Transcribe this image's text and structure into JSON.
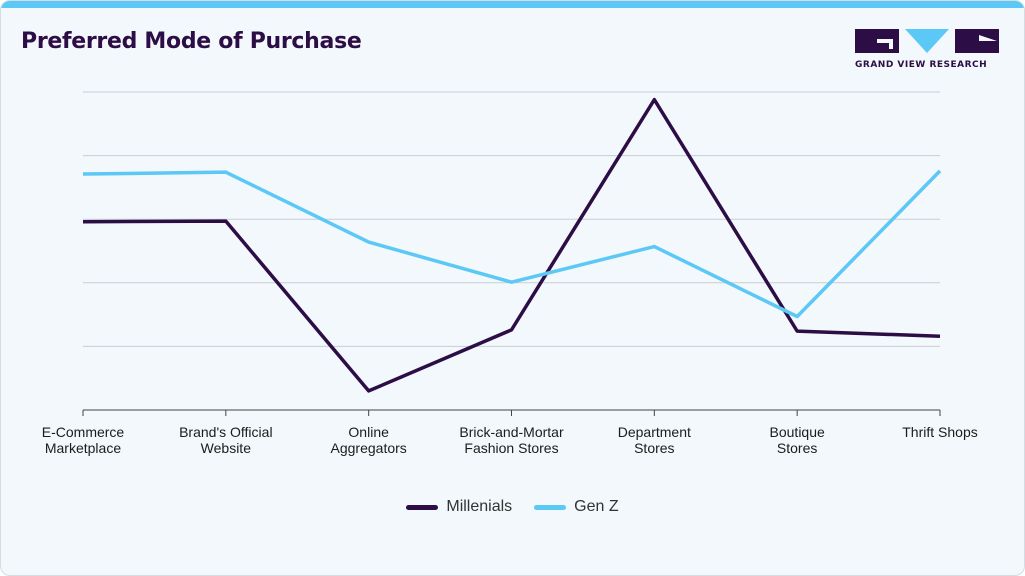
{
  "header": {
    "title": "Preferred Mode of Purchase"
  },
  "logo": {
    "text": "GRAND VIEW RESEARCH",
    "colors": {
      "primary": "#2d0d45",
      "accent": "#5bc8f5"
    }
  },
  "colors": {
    "background": "#f2f8fb",
    "top_bar": "#5bc8f5",
    "grid": "#c8ced4",
    "axis": "#444444"
  },
  "chart_data": {
    "type": "line",
    "title": "Preferred Mode of Purchase",
    "xlabel": "",
    "ylabel": "",
    "ylim": [
      0,
      50
    ],
    "grid": true,
    "legend_position": "bottom",
    "categories": [
      [
        "E-Commerce",
        "Marketplace"
      ],
      [
        "Brand's Official",
        "Website"
      ],
      [
        "Online",
        "Aggregators"
      ],
      [
        "Brick-and-Mortar",
        "Fashion Stores"
      ],
      [
        "Department",
        "Stores"
      ],
      [
        "Boutique",
        "Stores"
      ],
      [
        "Thrift Shops"
      ]
    ],
    "series": [
      {
        "name": "Millenials",
        "color": "#2d0d45",
        "values": [
          29.6,
          29.7,
          3.0,
          12.6,
          48.8,
          12.4,
          11.6
        ]
      },
      {
        "name": "Gen Z",
        "color": "#5bc8f5",
        "values": [
          37.1,
          37.4,
          26.4,
          20.1,
          25.7,
          14.7,
          37.6
        ]
      }
    ]
  }
}
